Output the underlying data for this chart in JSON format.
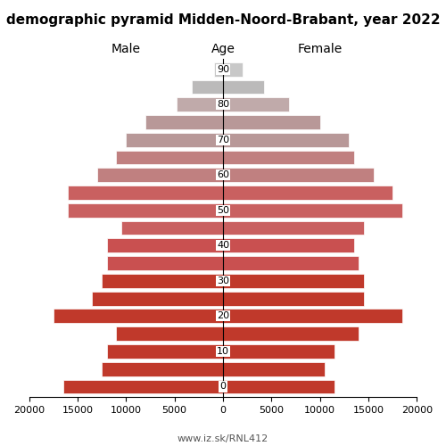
{
  "title": "demographic pyramid Midden-Noord-Brabant, year 2022",
  "label_left": "Male",
  "label_right": "Female",
  "label_center": "Age",
  "footer": "www.iz.sk/RNL412",
  "age_labels": [
    0,
    5,
    10,
    15,
    20,
    25,
    30,
    35,
    40,
    45,
    50,
    55,
    60,
    65,
    70,
    75,
    80,
    85,
    90
  ],
  "male": [
    16500,
    12500,
    12000,
    11000,
    17500,
    13500,
    12500,
    12000,
    12000,
    10500,
    16000,
    16000,
    13000,
    11000,
    10000,
    8000,
    4800,
    3200,
    900
  ],
  "female": [
    11500,
    10500,
    11500,
    14000,
    18500,
    14500,
    14500,
    14000,
    13500,
    14500,
    18500,
    17500,
    15500,
    13500,
    13000,
    10000,
    6800,
    4200,
    2000
  ],
  "colors_male": [
    "#c0392b",
    "#c0392b",
    "#c0392b",
    "#c0392b",
    "#c0392b",
    "#c0392b",
    "#c0392b",
    "#c95050",
    "#c95050",
    "#c96060",
    "#c96060",
    "#c96060",
    "#c08080",
    "#c08080",
    "#b89898",
    "#b89898",
    "#c0aaaa",
    "#bbbaba",
    "#c8c8c8"
  ],
  "colors_female": [
    "#c0392b",
    "#c0392b",
    "#c0392b",
    "#c0392b",
    "#c0392b",
    "#c0392b",
    "#c0392b",
    "#c95050",
    "#c95050",
    "#c96060",
    "#c96060",
    "#c96060",
    "#c08080",
    "#c08080",
    "#b89898",
    "#b89898",
    "#c0aaaa",
    "#bbbaba",
    "#c8c8c8"
  ],
  "xlim": 20000,
  "bar_height": 0.8,
  "bg_color": "#ffffff",
  "xticks": [
    -20000,
    -15000,
    -10000,
    -5000,
    0,
    5000,
    10000,
    15000,
    20000
  ],
  "xtick_labels": [
    "20000",
    "15000",
    "10000",
    "5000",
    "0",
    "5000",
    "10000",
    "15000",
    "20000"
  ],
  "age_ticks": [
    0,
    2,
    4,
    6,
    8,
    10,
    12,
    14,
    16,
    18
  ],
  "age_tick_labels": [
    "0",
    "10",
    "20",
    "30",
    "40",
    "50",
    "60",
    "70",
    "80",
    "90"
  ]
}
